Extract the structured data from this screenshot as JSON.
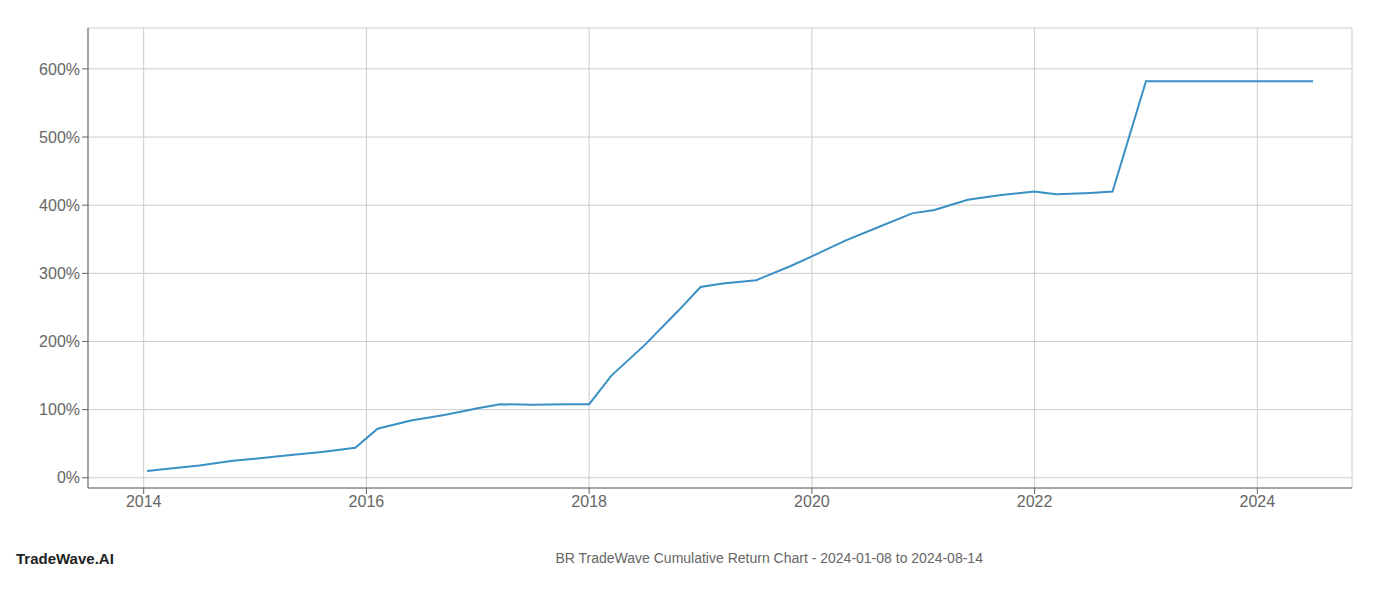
{
  "chart_data": {
    "type": "line",
    "title": "BR TradeWave Cumulative Return Chart - 2024-01-08 to 2024-08-14",
    "annotations": [
      "TradeWave.AI"
    ],
    "x": [
      2014.03,
      2014.2,
      2014.5,
      2014.8,
      2015.0,
      2015.3,
      2015.6,
      2015.9,
      2016.1,
      2016.4,
      2016.7,
      2017.0,
      2017.2,
      2017.5,
      2017.8,
      2018.0,
      2018.2,
      2018.5,
      2018.8,
      2019.0,
      2019.2,
      2019.5,
      2019.8,
      2020.0,
      2020.3,
      2020.6,
      2020.9,
      2021.1,
      2021.4,
      2021.7,
      2022.0,
      2022.1,
      2022.2,
      2022.5,
      2022.7,
      2023.0,
      2023.1,
      2023.3,
      2023.5,
      2023.7,
      2024.0,
      2024.5
    ],
    "values": [
      10,
      13,
      18,
      25,
      28,
      33,
      38,
      44,
      72,
      84,
      92,
      102,
      108,
      107,
      108,
      108,
      150,
      195,
      245,
      280,
      285,
      290,
      310,
      325,
      348,
      368,
      388,
      393,
      408,
      415,
      420,
      418,
      416,
      418,
      420,
      582,
      582,
      582,
      582,
      582,
      582,
      582
    ],
    "color": "#3a8fc4",
    "xlim": [
      2013.5,
      2024.85
    ],
    "ylim": [
      -15,
      660
    ],
    "xticks": [
      2014,
      2016,
      2018,
      2020,
      2022,
      2024
    ],
    "yticks": [
      {
        "value": 0,
        "label": "0%"
      },
      {
        "value": 100,
        "label": "100%"
      },
      {
        "value": 200,
        "label": "200%"
      },
      {
        "value": 300,
        "label": "300%"
      },
      {
        "value": 400,
        "label": "400%"
      },
      {
        "value": 500,
        "label": "500%"
      },
      {
        "value": 600,
        "label": "600%"
      }
    ],
    "grid": true
  }
}
